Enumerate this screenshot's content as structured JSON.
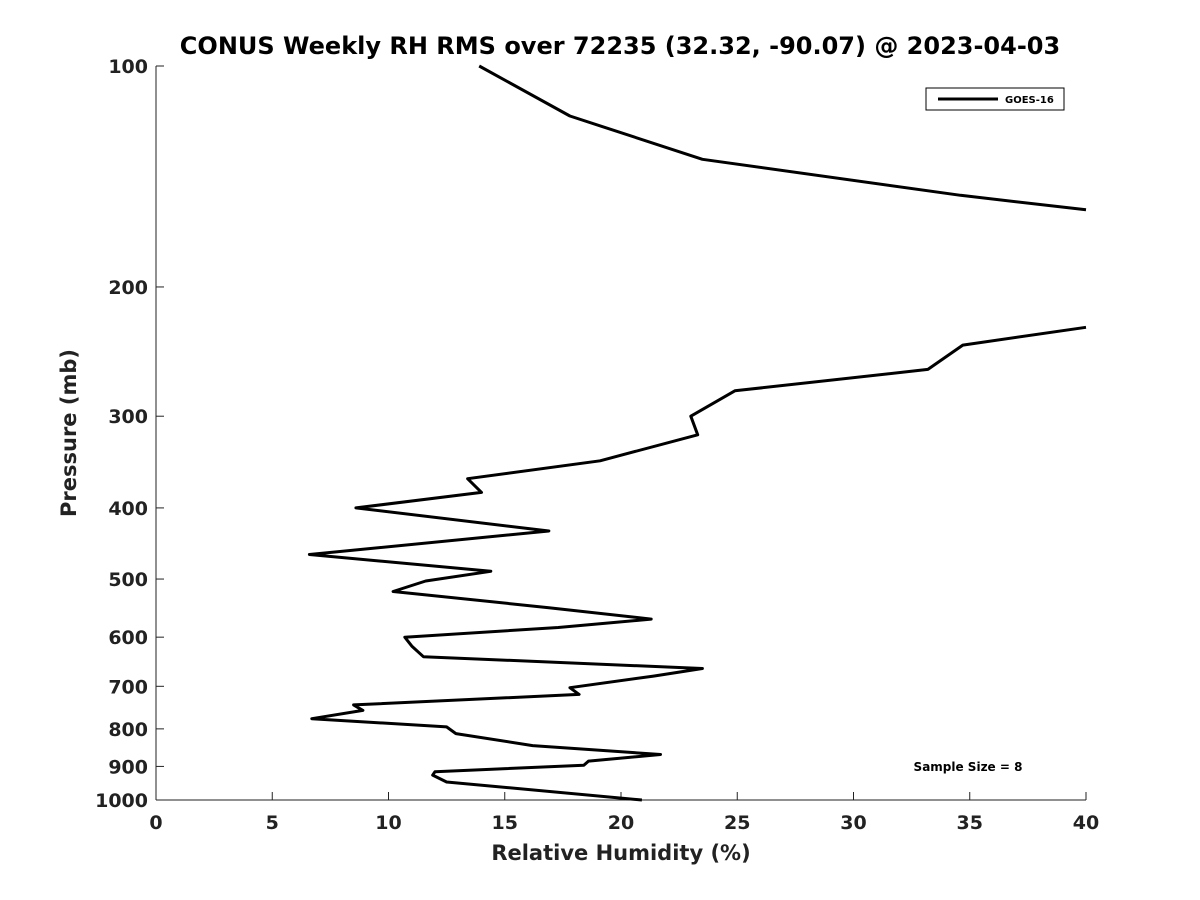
{
  "chart_data": {
    "type": "line",
    "title": "CONUS Weekly RH RMS over 72235 (32.32, -90.07) @ 2023-04-03",
    "xlabel": "Relative Humidity (%)",
    "ylabel": "Pressure (mb)",
    "xlim": [
      0,
      40
    ],
    "ylim": [
      1000,
      100
    ],
    "yscale": "log",
    "y_reversed": true,
    "x_ticks": [
      0,
      5,
      10,
      15,
      20,
      25,
      30,
      35,
      40
    ],
    "x_tick_labels": [
      "0",
      "5",
      "10",
      "15",
      "20",
      "25",
      "30",
      "35",
      "40"
    ],
    "y_ticks": [
      100,
      200,
      300,
      400,
      500,
      600,
      700,
      800,
      900,
      1000
    ],
    "y_tick_labels": [
      "100",
      "200",
      "300",
      "400",
      "500",
      "600",
      "700",
      "800",
      "900",
      "1000"
    ],
    "grid": false,
    "legend_position": "top-right",
    "annotation": "Sample Size = 8",
    "series": [
      {
        "name": "GOES-16",
        "color": "#000000",
        "segments": [
          {
            "x": [
              13.9,
              17.8,
              23.5,
              34.6,
              40.0
            ],
            "y": [
              100,
              117,
              134,
              150,
              157
            ]
          },
          {
            "x": [
              40.0,
              34.7,
              33.2,
              24.9,
              23.0,
              23.3,
              19.1,
              13.4,
              14.0,
              8.6,
              16.9,
              6.6,
              14.4,
              11.6,
              10.2,
              16.9,
              21.3,
              17.3,
              10.7,
              11.0,
              11.5,
              23.5,
              21.4,
              17.8,
              18.2,
              8.5,
              8.9,
              6.7,
              12.5,
              12.9,
              16.2,
              21.7,
              18.6,
              18.4,
              12.0,
              11.9,
              12.5,
              20.9
            ],
            "y": [
              227,
              240,
              259,
              277,
              300,
              318,
              345,
              365,
              381,
              400,
              430,
              463,
              488,
              503,
              520,
              547,
              567,
              582,
              600,
              617,
              638,
              662,
              678,
              703,
              718,
              742,
              755,
              775,
              795,
              812,
              843,
              867,
              885,
              897,
              915,
              925,
              945,
              1000
            ]
          }
        ]
      }
    ]
  }
}
